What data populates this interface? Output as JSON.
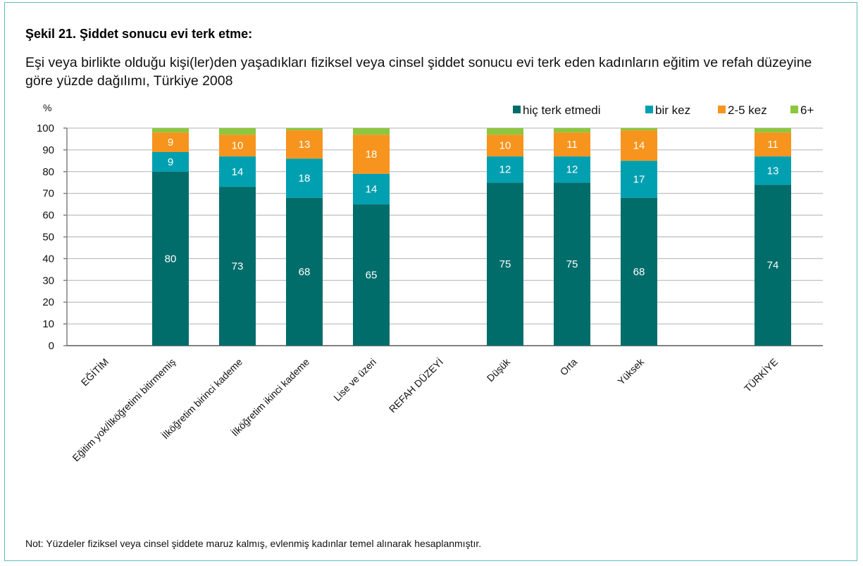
{
  "page": {
    "note": "Not: Yüzdeler fiziksel veya cinsel şiddete maruz kalmış, evlenmiş kadınlar temel alınarak hesaplanmıştır."
  },
  "colors": {
    "frame": "#5fbcc2",
    "never": "#006d6b",
    "once": "#00a0b0",
    "two_five": "#f7941d",
    "six_plus": "#8dc63f",
    "grid": "#b0b0b0"
  },
  "chart_data": {
    "type": "bar",
    "stacked": true,
    "title": "Şekil 21. Şiddet sonucu evi terk etme:",
    "subtitle": "Eşi veya birlikte olduğu kişi(ler)den yaşadıkları fiziksel veya cinsel şiddet sonucu evi terk eden kadınların eğitim ve refah düzeyine göre yüzde dağılımı, Türkiye 2008",
    "ylabel": "%",
    "ylim": [
      0,
      100
    ],
    "yticks": [
      0,
      10,
      20,
      30,
      40,
      50,
      60,
      70,
      80,
      90,
      100
    ],
    "grid": true,
    "legend_position": "top-right",
    "categories": [
      "EĞİTİM",
      "Eğitim yok/İlköğretimi bitirmemiş",
      "İlköğretim birinci kademe",
      "İlköğretim ikinci kademe",
      "Lise ve üzeri",
      "REFAH DÜZEYİ",
      "Düşük",
      "Orta",
      "Yüksek",
      "",
      "TÜRKİYE"
    ],
    "series": [
      {
        "name": "hiç terk etmedi",
        "color": "#006d6b",
        "values": [
          null,
          80,
          73,
          68,
          65,
          null,
          75,
          75,
          68,
          null,
          74
        ]
      },
      {
        "name": "bir kez",
        "color": "#00a0b0",
        "values": [
          null,
          9,
          14,
          18,
          14,
          null,
          12,
          12,
          17,
          null,
          13
        ]
      },
      {
        "name": "2-5 kez",
        "color": "#f7941d",
        "values": [
          null,
          9,
          10,
          13,
          18,
          null,
          10,
          11,
          14,
          null,
          11
        ]
      },
      {
        "name": "6+",
        "color": "#8dc63f",
        "values": [
          null,
          2,
          3,
          1,
          3,
          null,
          3,
          2,
          1,
          null,
          2
        ]
      }
    ],
    "data_labels": [
      [
        null,
        "80",
        "73",
        "68",
        "65",
        null,
        "75",
        "75",
        "68",
        null,
        "74"
      ],
      [
        null,
        "9",
        "14",
        "18",
        "14",
        null,
        "12",
        "12",
        "17",
        null,
        "13"
      ],
      [
        null,
        "9",
        "10",
        "13",
        "18",
        null,
        "10",
        "11",
        "14",
        null,
        "11"
      ],
      [
        null,
        null,
        null,
        null,
        null,
        null,
        null,
        null,
        null,
        null,
        null
      ]
    ]
  }
}
